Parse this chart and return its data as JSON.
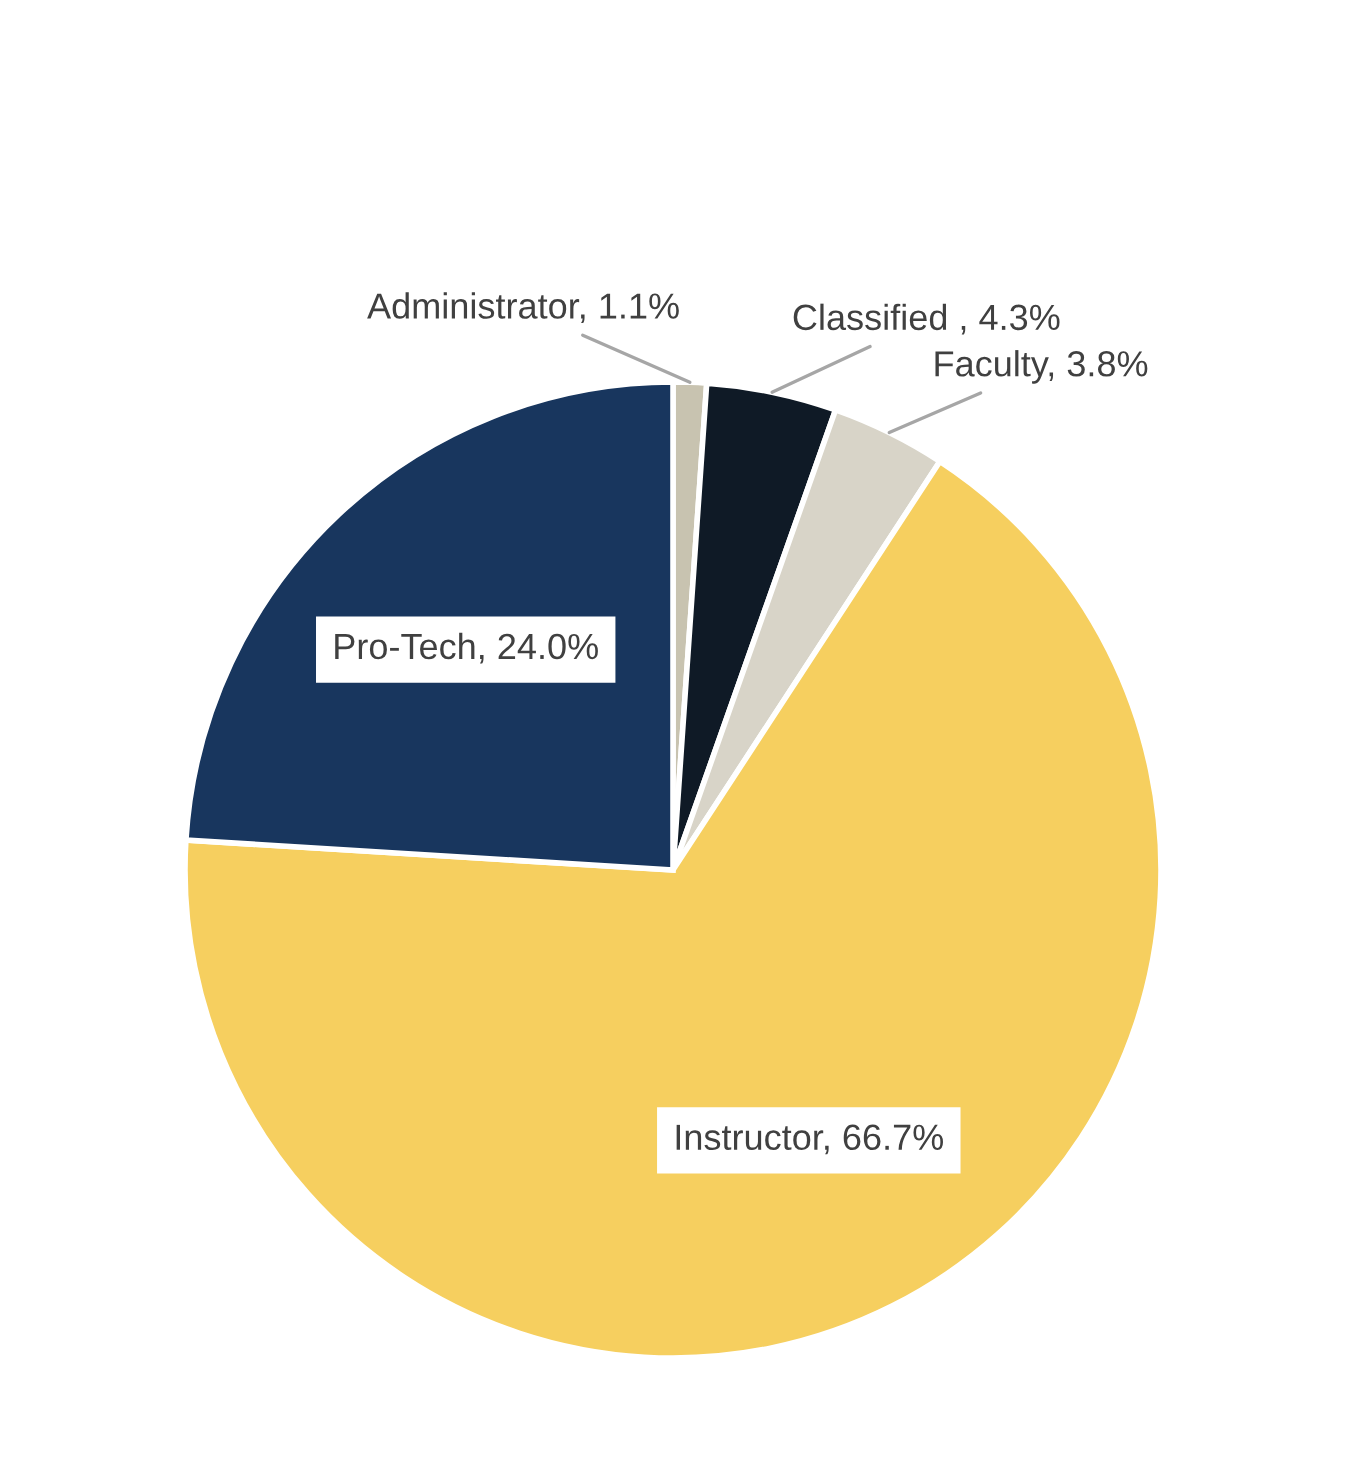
{
  "chart_data": {
    "type": "pie",
    "categories": [
      "Administrator",
      "Classified ",
      "Faculty",
      "Instructor",
      "Pro-Tech"
    ],
    "values": [
      1.1,
      4.3,
      3.8,
      66.7,
      24.0
    ],
    "colors": [
      "#c8c3b0",
      "#0f1a26",
      "#d8d4c8",
      "#f6cf5f",
      "#18365e"
    ],
    "value_labels": [
      "1.1%",
      "4.3%",
      "3.8%",
      "66.7%",
      "24.0%"
    ]
  }
}
